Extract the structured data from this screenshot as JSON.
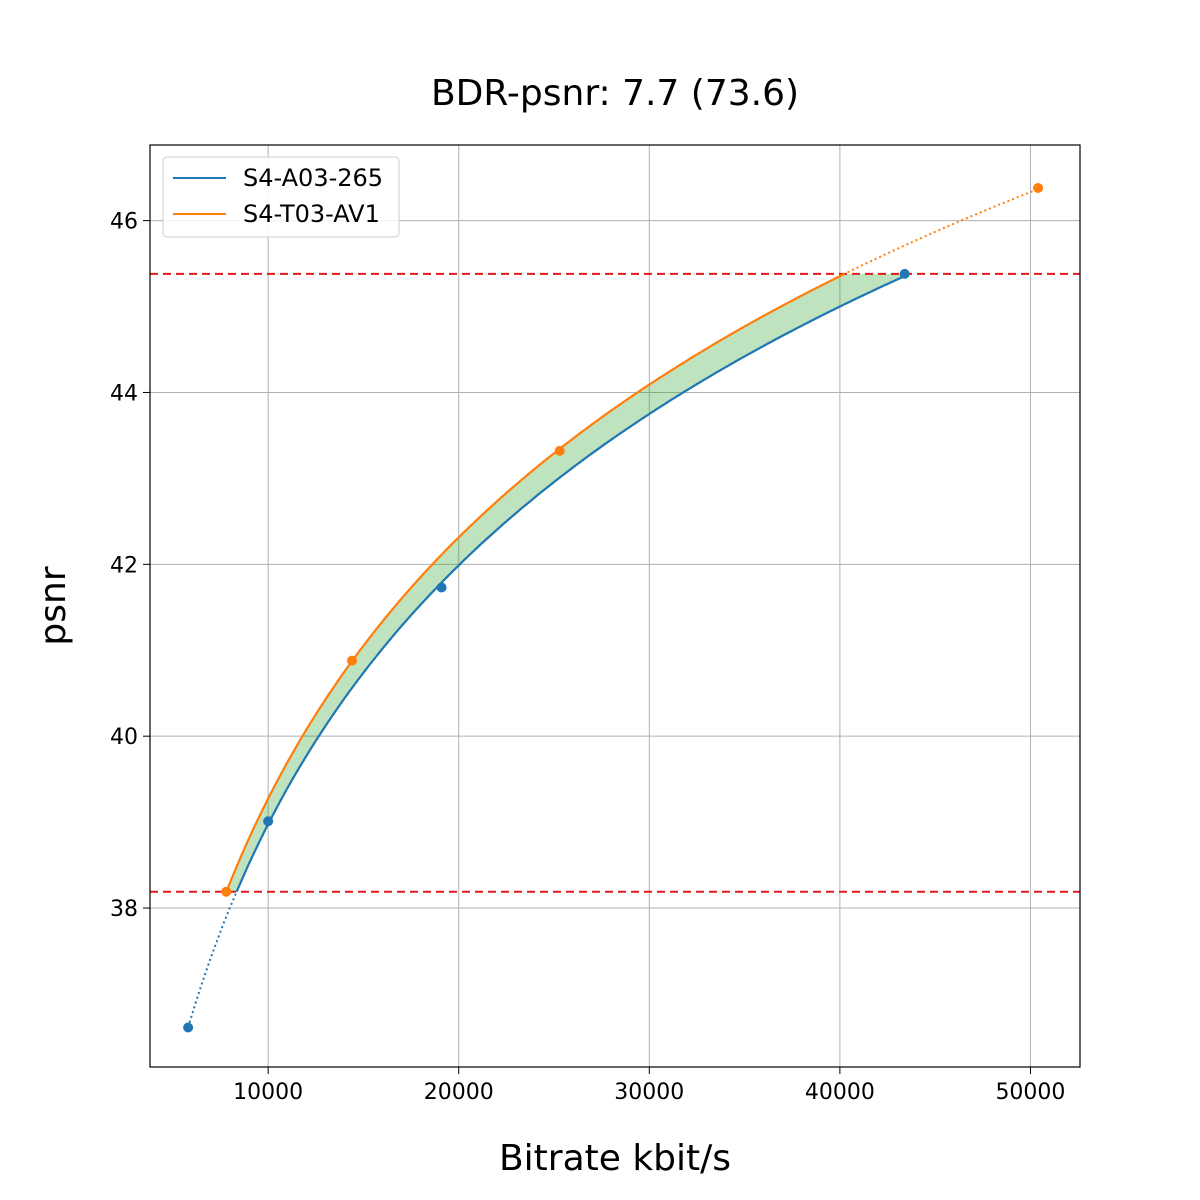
{
  "chart_data": {
    "type": "line",
    "title": "BDR-psnr: 7.7 (73.6)",
    "xlabel": "Bitrate kbit/s",
    "ylabel": "psnr",
    "xlim": [
      3800,
      52600
    ],
    "ylim": [
      36.15,
      46.88
    ],
    "xticks": [
      10000,
      20000,
      30000,
      40000,
      50000
    ],
    "yticks": [
      38,
      40,
      42,
      44,
      46
    ],
    "grid": true,
    "legend_position": "top-left",
    "series": [
      {
        "name": "S4-A03-265",
        "color": "#1f77b4",
        "points": [
          [
            5800,
            36.61
          ],
          [
            10000,
            39.01
          ],
          [
            19100,
            41.73
          ],
          [
            43400,
            45.38
          ]
        ]
      },
      {
        "name": "S4-T03-AV1",
        "color": "#ff7f0e",
        "points": [
          [
            7800,
            38.19
          ],
          [
            14400,
            40.88
          ],
          [
            25300,
            43.32
          ],
          [
            50400,
            46.38
          ]
        ]
      }
    ],
    "reference_lines": [
      {
        "axis": "y",
        "value": 45.38,
        "color": "#e41a1c",
        "style": "dashed"
      },
      {
        "axis": "y",
        "value": 38.19,
        "color": "#e41a1c",
        "style": "dashed"
      }
    ],
    "fill_between": {
      "y_range": [
        38.19,
        45.38
      ],
      "color": "#2ca02c",
      "opacity": 0.3
    }
  }
}
